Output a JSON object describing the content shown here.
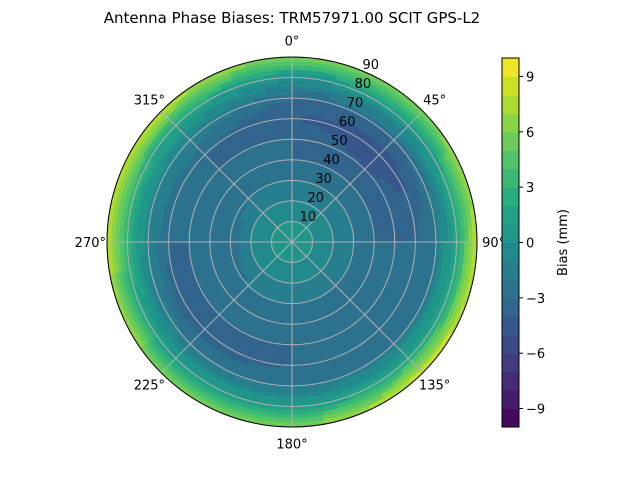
{
  "chart_data": {
    "type": "heatmap",
    "subtype": "polar-filled-contour",
    "title": "Antenna Phase Biases: TRM57971.00     SCIT GPS-L2",
    "angle_tick_labels": [
      "0°",
      "45°",
      "90°",
      "135°",
      "180°",
      "225°",
      "270°",
      "315°"
    ],
    "radial_tick_labels": [
      "10",
      "20",
      "30",
      "40",
      "50",
      "60",
      "70",
      "80",
      "90"
    ],
    "radial_range": [
      0,
      90
    ],
    "angle_zero": "north",
    "angle_direction": "clockwise",
    "grid": true,
    "colormap": "viridis",
    "colorbar": {
      "label": "Bias (mm)",
      "range": [
        -10,
        10
      ],
      "levels_step": 1,
      "tick_values": [
        -9,
        -6,
        -3,
        0,
        3,
        6,
        9
      ],
      "tick_labels": [
        "−9",
        "−6",
        "−3",
        "0",
        "3",
        "6",
        "9"
      ]
    },
    "azimuth_deg": [
      0,
      45,
      90,
      135,
      180,
      225,
      270,
      315
    ],
    "zenith_deg": [
      0,
      10,
      20,
      30,
      40,
      50,
      60,
      70,
      80,
      90
    ],
    "bias_mm": [
      [
        0,
        0,
        -1,
        -2,
        -3,
        -3,
        -4,
        -3,
        0,
        6
      ],
      [
        0,
        0,
        -1,
        -2,
        -3,
        -4,
        -5,
        -3,
        1,
        6
      ],
      [
        0,
        0,
        -1,
        -2,
        -3,
        -3,
        -3,
        -2,
        2,
        8
      ],
      [
        0,
        0,
        -1,
        -2,
        -3,
        -3,
        -3,
        -2,
        2,
        9
      ],
      [
        0,
        0,
        -1,
        -2,
        -3,
        -3,
        -3,
        -2,
        1,
        6
      ],
      [
        0,
        0,
        -1,
        -2,
        -3,
        -3,
        -4,
        -2,
        1,
        6
      ],
      [
        0,
        0,
        -1,
        -3,
        -3,
        -3,
        -3,
        -1,
        3,
        8
      ],
      [
        0,
        0,
        -1,
        -2,
        -3,
        -3,
        -3,
        -1,
        2,
        8
      ]
    ]
  }
}
